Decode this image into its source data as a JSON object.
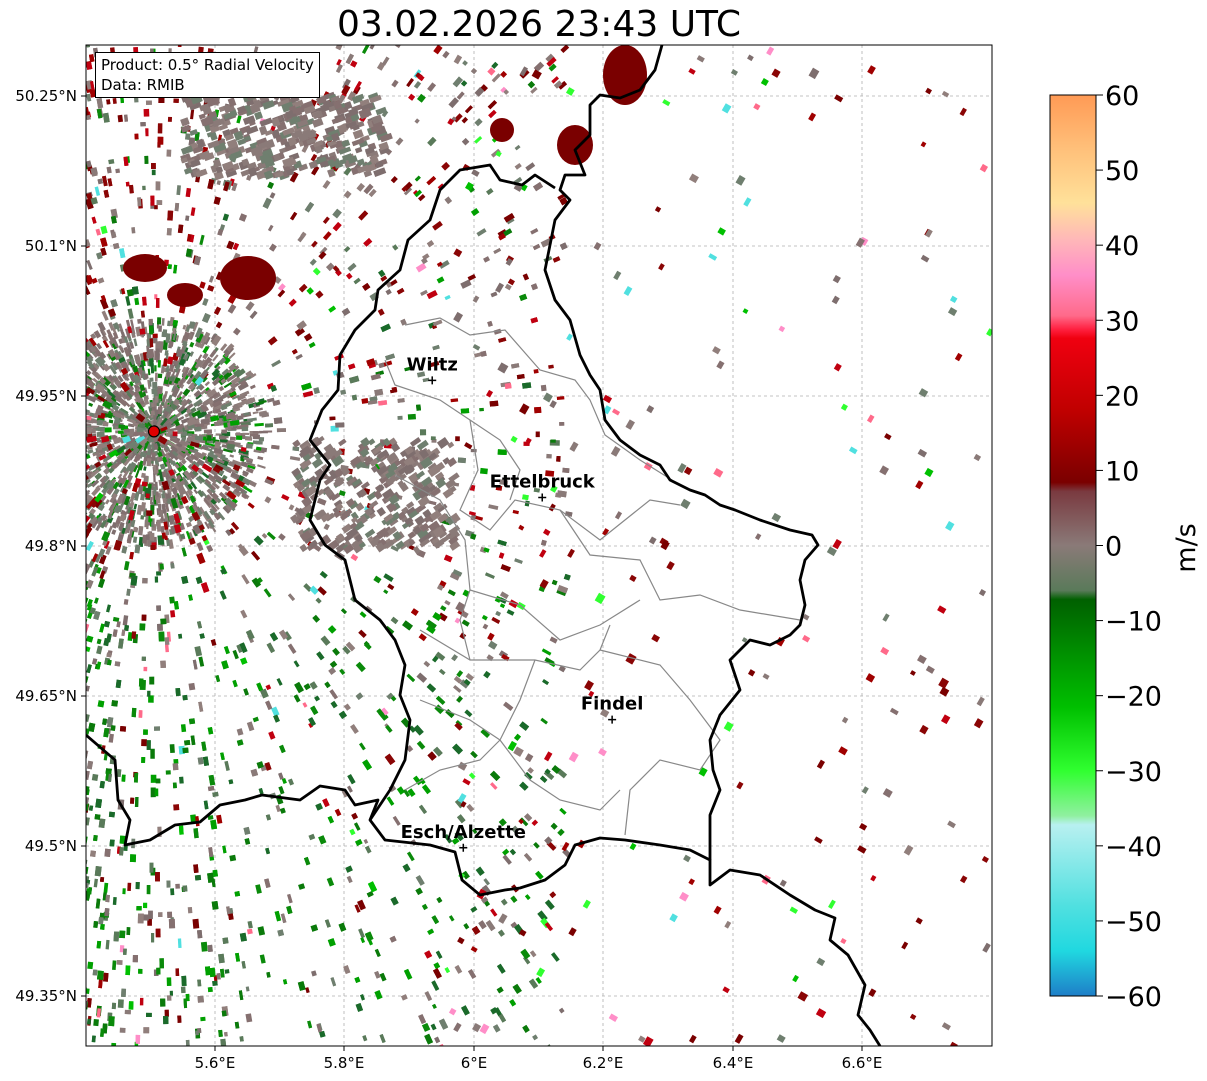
{
  "title": "03.02.2026 23:43 UTC",
  "info": {
    "product": "Product: 0.5° Radial Velocity",
    "source": "Data: RMIB"
  },
  "map": {
    "lon_range": [
      5.4,
      6.8
    ],
    "lat_range": [
      49.3,
      50.3
    ],
    "lon_ticks": [
      "5.6°E",
      "5.8°E",
      "6°E",
      "6.2°E",
      "6.4°E",
      "6.6°E"
    ],
    "lat_ticks": [
      "50.25°N",
      "50.1°N",
      "49.95°N",
      "49.8°N",
      "49.65°N",
      "49.5°N",
      "49.35°N"
    ],
    "grid": true,
    "radar_site": {
      "lon": 5.505,
      "lat": 49.914
    },
    "cities": [
      {
        "name": "Wiltz",
        "lon": 5.935,
        "lat": 49.965
      },
      {
        "name": "Ettelbruck",
        "lon": 6.105,
        "lat": 49.848
      },
      {
        "name": "Findel",
        "lon": 6.213,
        "lat": 49.626
      },
      {
        "name": "Esch/Alzette",
        "lon": 5.983,
        "lat": 49.498
      }
    ]
  },
  "colorbar": {
    "label": "m/s",
    "ticks": [
      "60",
      "50",
      "40",
      "30",
      "20",
      "10",
      "0",
      "−10",
      "−20",
      "−30",
      "−40",
      "−50",
      "−60"
    ],
    "range": [
      -60,
      60
    ]
  },
  "colors": {
    "velocity_zero": "#8a7a78",
    "receding": "#7a0000",
    "approaching": "#0a8a0a",
    "border": "#000000",
    "cantons": "#888888"
  }
}
